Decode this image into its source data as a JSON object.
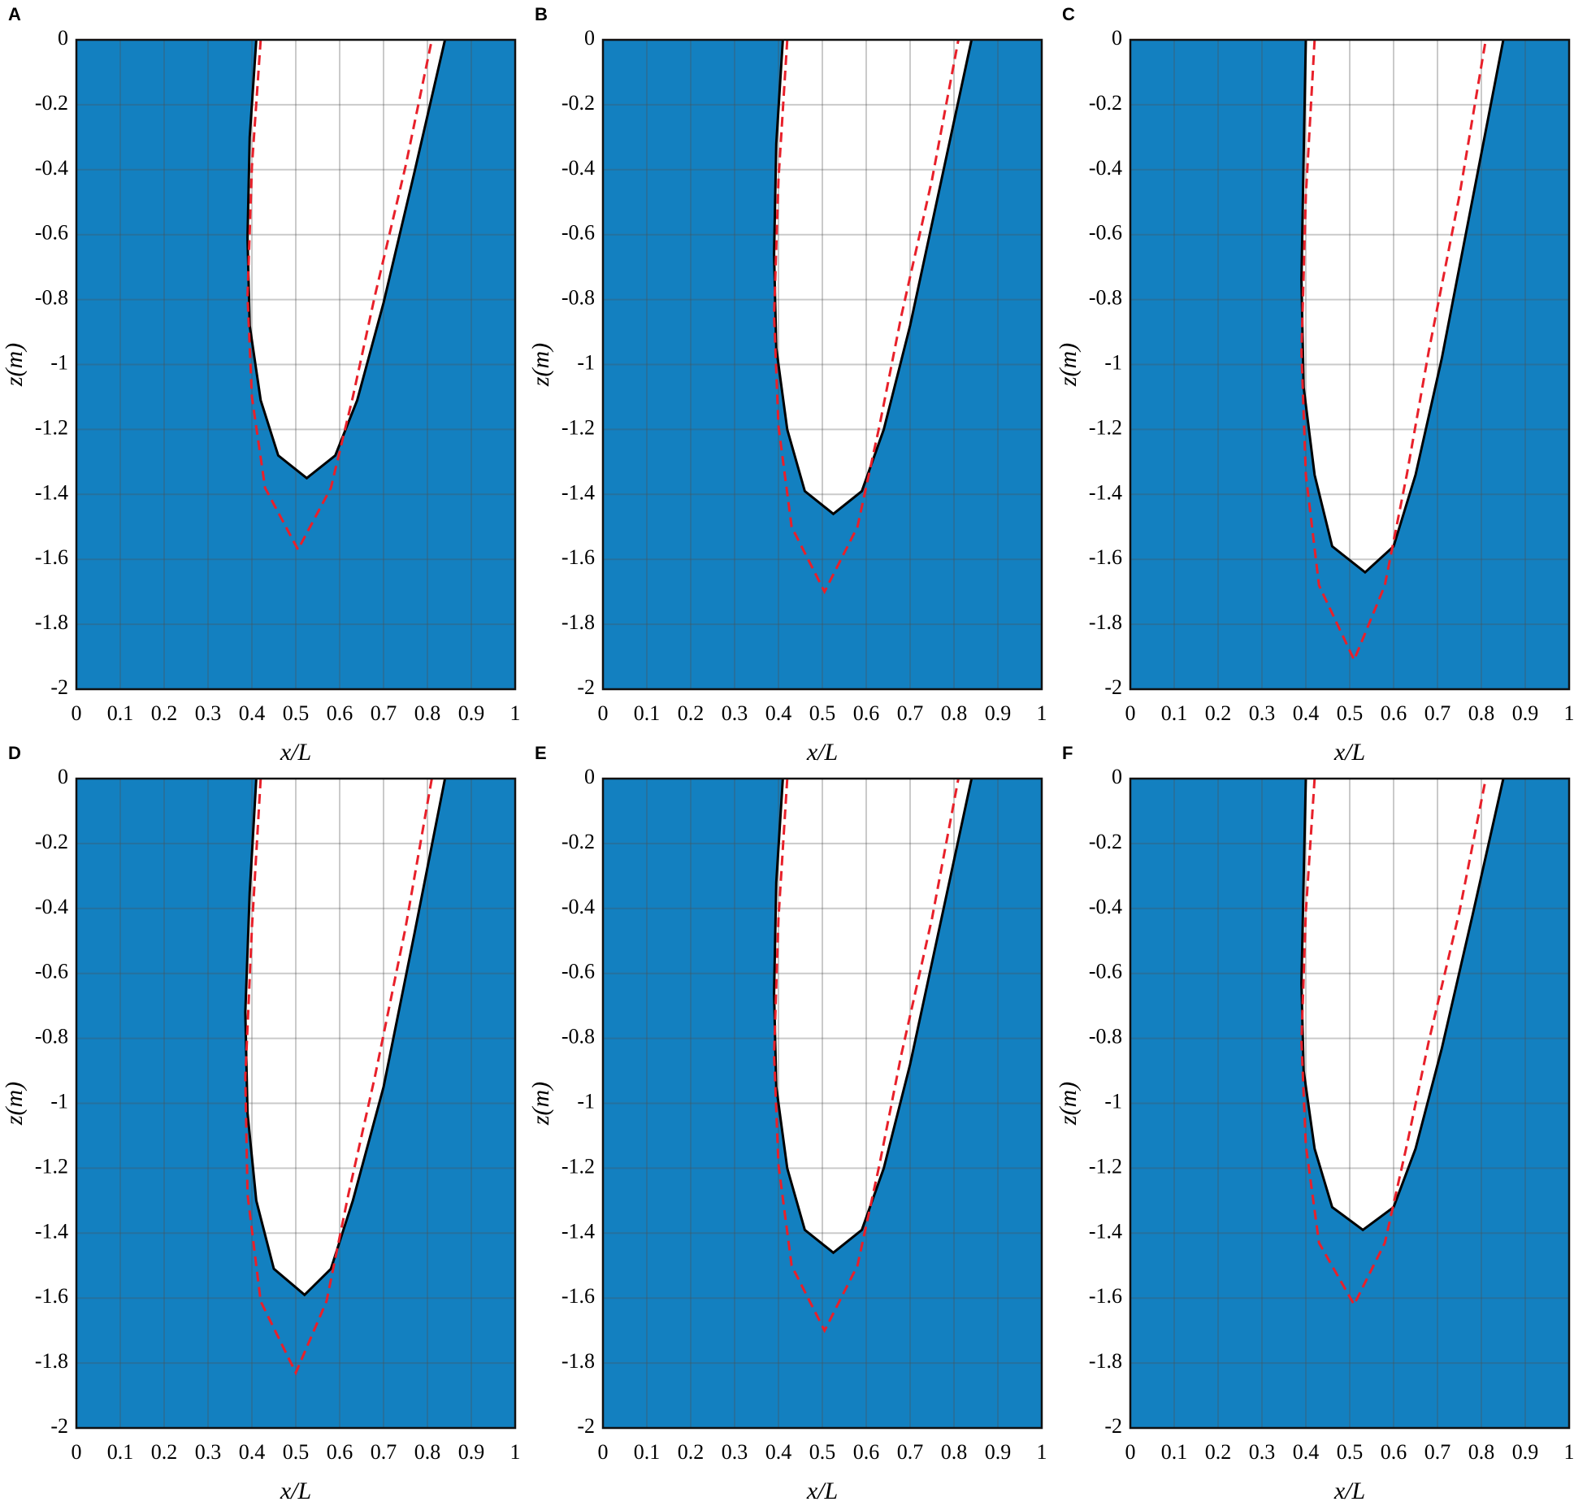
{
  "chart_data": [
    {
      "type": "line",
      "panel": "A",
      "xlabel": "x/L",
      "ylabel": "z(m)",
      "xlim": [
        0,
        1
      ],
      "ylim": [
        -2,
        0
      ],
      "xticks": [
        0,
        0.1,
        0.2,
        0.3,
        0.4,
        0.5,
        0.6,
        0.7,
        0.8,
        0.9,
        1
      ],
      "yticks": [
        0,
        -0.2,
        -0.4,
        -0.6,
        -0.8,
        -1,
        -1.2,
        -1.4,
        -1.6,
        -1.8,
        -2
      ],
      "grid": true,
      "background": "#1380c0",
      "series": [
        {
          "color": "#000000",
          "style": "solid",
          "x": [
            0.41,
            0.395,
            0.39,
            0.395,
            0.42,
            0.46,
            0.525,
            0.59,
            0.64,
            0.7,
            0.77,
            0.84
          ],
          "values": [
            0,
            -0.3,
            -0.61,
            -0.88,
            -1.11,
            -1.28,
            -1.35,
            -1.28,
            -1.11,
            -0.81,
            -0.41,
            0
          ]
        },
        {
          "color": "#e8202a",
          "style": "dashed",
          "x": [
            0.42,
            0.4,
            0.39,
            0.4,
            0.43,
            0.505,
            0.58,
            0.63,
            0.68,
            0.75,
            0.81
          ],
          "values": [
            0,
            -0.39,
            -0.79,
            -1.1,
            -1.38,
            -1.57,
            -1.38,
            -1.1,
            -0.79,
            -0.39,
            0
          ]
        }
      ]
    },
    {
      "type": "line",
      "panel": "B",
      "xlabel": "x/L",
      "ylabel": "z(m)",
      "xlim": [
        0,
        1
      ],
      "ylim": [
        -2,
        0
      ],
      "xticks": [
        0,
        0.1,
        0.2,
        0.3,
        0.4,
        0.5,
        0.6,
        0.7,
        0.8,
        0.9,
        1
      ],
      "yticks": [
        0,
        -0.2,
        -0.4,
        -0.6,
        -0.8,
        -1,
        -1.2,
        -1.4,
        -1.6,
        -1.8,
        -2
      ],
      "grid": true,
      "background": "#1380c0",
      "series": [
        {
          "color": "#000000",
          "style": "solid",
          "x": [
            0.41,
            0.395,
            0.39,
            0.395,
            0.42,
            0.46,
            0.525,
            0.59,
            0.64,
            0.7,
            0.77,
            0.84
          ],
          "values": [
            0,
            -0.32,
            -0.66,
            -0.95,
            -1.2,
            -1.39,
            -1.46,
            -1.39,
            -1.2,
            -0.88,
            -0.44,
            0
          ]
        },
        {
          "color": "#e8202a",
          "style": "dashed",
          "x": [
            0.42,
            0.4,
            0.39,
            0.4,
            0.43,
            0.505,
            0.58,
            0.63,
            0.68,
            0.75,
            0.81
          ],
          "values": [
            0,
            -0.43,
            -0.85,
            -1.19,
            -1.5,
            -1.7,
            -1.5,
            -1.19,
            -0.85,
            -0.43,
            0
          ]
        }
      ]
    },
    {
      "type": "line",
      "panel": "C",
      "xlabel": "x/L",
      "ylabel": "z(m)",
      "xlim": [
        0,
        1
      ],
      "ylim": [
        -2,
        0
      ],
      "xticks": [
        0,
        0.1,
        0.2,
        0.3,
        0.4,
        0.5,
        0.6,
        0.7,
        0.8,
        0.9,
        1
      ],
      "yticks": [
        0,
        -0.2,
        -0.4,
        -0.6,
        -0.8,
        -1,
        -1.2,
        -1.4,
        -1.6,
        -1.8,
        -2
      ],
      "grid": true,
      "background": "#1380c0",
      "series": [
        {
          "color": "#000000",
          "style": "solid",
          "x": [
            0.4,
            0.395,
            0.39,
            0.395,
            0.42,
            0.46,
            0.535,
            0.6,
            0.65,
            0.71,
            0.78,
            0.85
          ],
          "values": [
            0,
            -0.36,
            -0.74,
            -1.07,
            -1.34,
            -1.56,
            -1.64,
            -1.56,
            -1.34,
            -0.98,
            -0.49,
            0
          ]
        },
        {
          "color": "#e8202a",
          "style": "dashed",
          "x": [
            0.42,
            0.4,
            0.39,
            0.4,
            0.43,
            0.51,
            0.58,
            0.63,
            0.68,
            0.75,
            0.81
          ],
          "values": [
            0,
            -0.48,
            -0.96,
            -1.34,
            -1.68,
            -1.91,
            -1.68,
            -1.34,
            -0.96,
            -0.48,
            0
          ]
        }
      ]
    },
    {
      "type": "line",
      "panel": "D",
      "xlabel": "x/L",
      "ylabel": "z(m)",
      "xlim": [
        0,
        1
      ],
      "ylim": [
        -2,
        0
      ],
      "xticks": [
        0,
        0.1,
        0.2,
        0.3,
        0.4,
        0.5,
        0.6,
        0.7,
        0.8,
        0.9,
        1
      ],
      "yticks": [
        0,
        -0.2,
        -0.4,
        -0.6,
        -0.8,
        -1,
        -1.2,
        -1.4,
        -1.6,
        -1.8,
        -2
      ],
      "grid": true,
      "background": "#1380c0",
      "series": [
        {
          "color": "#000000",
          "style": "solid",
          "x": [
            0.41,
            0.395,
            0.385,
            0.39,
            0.41,
            0.45,
            0.52,
            0.58,
            0.63,
            0.7,
            0.77,
            0.84
          ],
          "values": [
            0,
            -0.35,
            -0.72,
            -1.03,
            -1.3,
            -1.51,
            -1.59,
            -1.51,
            -1.3,
            -0.95,
            -0.48,
            0
          ]
        },
        {
          "color": "#e8202a",
          "style": "dashed",
          "x": [
            0.42,
            0.4,
            0.385,
            0.39,
            0.42,
            0.5,
            0.57,
            0.62,
            0.68,
            0.75,
            0.81
          ],
          "values": [
            0,
            -0.46,
            -0.92,
            -1.28,
            -1.61,
            -1.83,
            -1.61,
            -1.28,
            -0.92,
            -0.46,
            0
          ]
        }
      ]
    },
    {
      "type": "line",
      "panel": "E",
      "xlabel": "x/L",
      "ylabel": "z(m)",
      "xlim": [
        0,
        1
      ],
      "ylim": [
        -2,
        0
      ],
      "xticks": [
        0,
        0.1,
        0.2,
        0.3,
        0.4,
        0.5,
        0.6,
        0.7,
        0.8,
        0.9,
        1
      ],
      "yticks": [
        0,
        -0.2,
        -0.4,
        -0.6,
        -0.8,
        -1,
        -1.2,
        -1.4,
        -1.6,
        -1.8,
        -2
      ],
      "grid": true,
      "background": "#1380c0",
      "series": [
        {
          "color": "#000000",
          "style": "solid",
          "x": [
            0.41,
            0.395,
            0.39,
            0.395,
            0.42,
            0.46,
            0.525,
            0.59,
            0.64,
            0.7,
            0.77,
            0.84
          ],
          "values": [
            0,
            -0.32,
            -0.66,
            -0.95,
            -1.2,
            -1.39,
            -1.46,
            -1.39,
            -1.2,
            -0.88,
            -0.44,
            0
          ]
        },
        {
          "color": "#e8202a",
          "style": "dashed",
          "x": [
            0.42,
            0.4,
            0.39,
            0.4,
            0.43,
            0.505,
            0.58,
            0.63,
            0.68,
            0.75,
            0.81
          ],
          "values": [
            0,
            -0.43,
            -0.85,
            -1.19,
            -1.5,
            -1.7,
            -1.5,
            -1.19,
            -0.85,
            -0.43,
            0
          ]
        }
      ]
    },
    {
      "type": "line",
      "panel": "F",
      "xlabel": "x/L",
      "ylabel": "z(m)",
      "xlim": [
        0,
        1
      ],
      "ylim": [
        -2,
        0
      ],
      "xticks": [
        0,
        0.1,
        0.2,
        0.3,
        0.4,
        0.5,
        0.6,
        0.7,
        0.8,
        0.9,
        1
      ],
      "yticks": [
        0,
        -0.2,
        -0.4,
        -0.6,
        -0.8,
        -1,
        -1.2,
        -1.4,
        -1.6,
        -1.8,
        -2
      ],
      "grid": true,
      "background": "#1380c0",
      "series": [
        {
          "color": "#000000",
          "style": "solid",
          "x": [
            0.4,
            0.395,
            0.39,
            0.395,
            0.42,
            0.46,
            0.53,
            0.6,
            0.65,
            0.71,
            0.78,
            0.85
          ],
          "values": [
            0,
            -0.31,
            -0.63,
            -0.9,
            -1.14,
            -1.32,
            -1.39,
            -1.32,
            -1.14,
            -0.83,
            -0.42,
            0
          ]
        },
        {
          "color": "#e8202a",
          "style": "dashed",
          "x": [
            0.42,
            0.4,
            0.39,
            0.4,
            0.43,
            0.51,
            0.58,
            0.63,
            0.68,
            0.75,
            0.81
          ],
          "values": [
            0,
            -0.41,
            -0.81,
            -1.13,
            -1.43,
            -1.62,
            -1.43,
            -1.13,
            -0.81,
            -0.41,
            0
          ]
        }
      ]
    }
  ]
}
